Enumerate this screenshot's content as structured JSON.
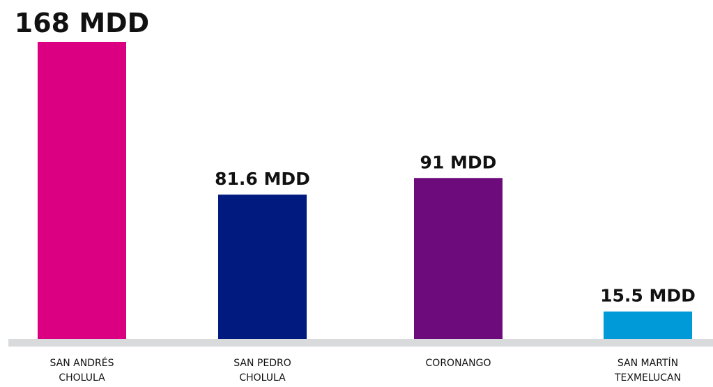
{
  "chart_data": {
    "type": "bar",
    "categories": [
      "SAN ANDRÉS CHOLULA",
      "SAN PEDRO CHOLULA",
      "CORONANGO",
      "SAN MARTÍN TEXMELUCAN"
    ],
    "values": [
      168,
      81.6,
      91,
      15.5
    ],
    "value_labels": [
      "168 MDD",
      "81.6 MDD",
      "91 MDD",
      "15.5 MDD"
    ],
    "colors": [
      "#db0081",
      "#001a80",
      "#6e0b7c",
      "#009ad9"
    ]
  }
}
